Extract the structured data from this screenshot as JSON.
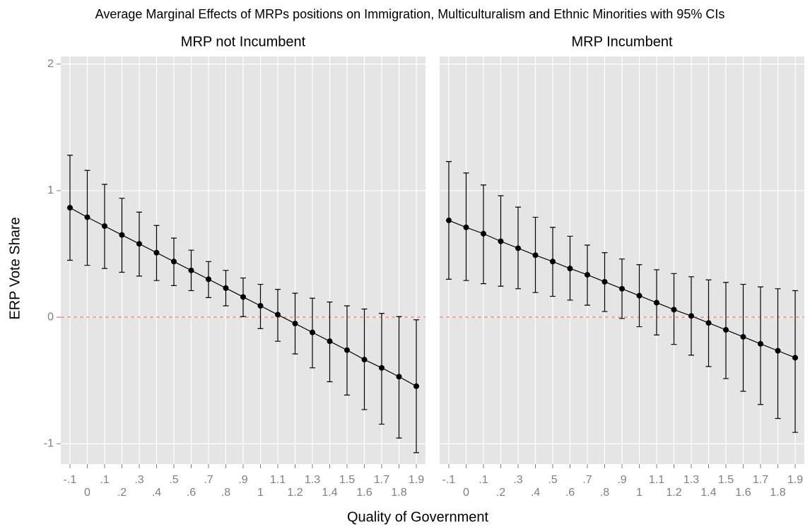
{
  "title": "Average Marginal Effects of MRPs positions on Immigration, Multiculturalism and Ethnic Minorities with 95% CIs",
  "x_label": "Quality of Government",
  "y_label": "ERP Vote Share",
  "chart_data": [
    {
      "type": "errorbar",
      "title": "MRP not Incumbent",
      "x": [
        -0.1,
        0,
        0.1,
        0.2,
        0.3,
        0.4,
        0.5,
        0.6,
        0.7,
        0.8,
        0.9,
        1,
        1.1,
        1.2,
        1.3,
        1.4,
        1.5,
        1.6,
        1.7,
        1.8,
        1.9
      ],
      "series": [
        {
          "color": "#000000",
          "values": [
            0.865,
            0.79,
            0.72,
            0.65,
            0.58,
            0.51,
            0.44,
            0.37,
            0.3,
            0.23,
            0.16,
            0.09,
            0.02,
            -0.05,
            -0.12,
            -0.19,
            -0.26,
            -0.335,
            -0.4,
            -0.47,
            -0.545
          ],
          "lower": [
            0.45,
            0.41,
            0.385,
            0.355,
            0.325,
            0.29,
            0.25,
            0.21,
            0.155,
            0.09,
            0.005,
            -0.09,
            -0.19,
            -0.29,
            -0.4,
            -0.51,
            -0.615,
            -0.73,
            -0.845,
            -0.955,
            -1.07
          ],
          "upper": [
            1.28,
            1.16,
            1.05,
            0.94,
            0.83,
            0.725,
            0.625,
            0.53,
            0.44,
            0.37,
            0.31,
            0.26,
            0.22,
            0.19,
            0.15,
            0.12,
            0.09,
            0.065,
            0.03,
            0.005,
            -0.02
          ]
        }
      ],
      "reference_line": 0,
      "reference_color": "#f08070",
      "xlim": [
        -0.153,
        1.953
      ],
      "ylim": [
        -1.16,
        2.06
      ],
      "xticks": [
        {
          "value": -0.1,
          "label": "-.1"
        },
        0,
        {
          "value": 0.1,
          "label": ".1"
        },
        {
          "value": 0.2,
          "label": ".2"
        },
        {
          "value": 0.3,
          "label": ".3"
        },
        {
          "value": 0.4,
          "label": ".4"
        },
        {
          "value": 0.5,
          "label": ".5"
        },
        {
          "value": 0.6,
          "label": ".6"
        },
        {
          "value": 0.7,
          "label": ".7"
        },
        {
          "value": 0.8,
          "label": ".8"
        },
        {
          "value": 0.9,
          "label": ".9"
        },
        1,
        1.1,
        1.2,
        1.3,
        1.4,
        1.5,
        1.6,
        1.7,
        1.8,
        1.9
      ],
      "yticks": [
        -1,
        0,
        1,
        2
      ],
      "show_y_tick_labels": true,
      "grid": true
    },
    {
      "type": "errorbar",
      "title": "MRP Incumbent",
      "x": [
        -0.1,
        0,
        0.1,
        0.2,
        0.3,
        0.4,
        0.5,
        0.6,
        0.7,
        0.8,
        0.9,
        1,
        1.1,
        1.2,
        1.3,
        1.4,
        1.5,
        1.6,
        1.7,
        1.8,
        1.9
      ],
      "series": [
        {
          "color": "#000000",
          "values": [
            0.765,
            0.71,
            0.66,
            0.6,
            0.545,
            0.49,
            0.44,
            0.385,
            0.335,
            0.28,
            0.225,
            0.17,
            0.115,
            0.06,
            0.01,
            -0.045,
            -0.1,
            -0.155,
            -0.21,
            -0.265,
            -0.32
          ],
          "lower": [
            0.3,
            0.29,
            0.265,
            0.245,
            0.225,
            0.195,
            0.165,
            0.135,
            0.095,
            0.045,
            -0.01,
            -0.075,
            -0.14,
            -0.215,
            -0.3,
            -0.39,
            -0.485,
            -0.585,
            -0.69,
            -0.8,
            -0.91
          ],
          "upper": [
            1.23,
            1.14,
            1.045,
            0.96,
            0.87,
            0.79,
            0.71,
            0.64,
            0.57,
            0.51,
            0.46,
            0.415,
            0.375,
            0.345,
            0.32,
            0.295,
            0.275,
            0.26,
            0.24,
            0.225,
            0.21
          ]
        }
      ],
      "reference_line": 0,
      "reference_color": "#f08070",
      "xlim": [
        -0.153,
        1.953
      ],
      "ylim": [
        -1.16,
        2.06
      ],
      "xticks": [
        {
          "value": -0.1,
          "label": "-.1"
        },
        0,
        {
          "value": 0.1,
          "label": ".1"
        },
        {
          "value": 0.2,
          "label": ".2"
        },
        {
          "value": 0.3,
          "label": ".3"
        },
        {
          "value": 0.4,
          "label": ".4"
        },
        {
          "value": 0.5,
          "label": ".5"
        },
        {
          "value": 0.6,
          "label": ".6"
        },
        {
          "value": 0.7,
          "label": ".7"
        },
        {
          "value": 0.8,
          "label": ".8"
        },
        {
          "value": 0.9,
          "label": ".9"
        },
        1,
        1.1,
        1.2,
        1.3,
        1.4,
        1.5,
        1.6,
        1.7,
        1.8,
        1.9
      ],
      "yticks": [
        -1,
        0,
        1,
        2
      ],
      "show_y_tick_labels": false,
      "grid": true
    }
  ]
}
